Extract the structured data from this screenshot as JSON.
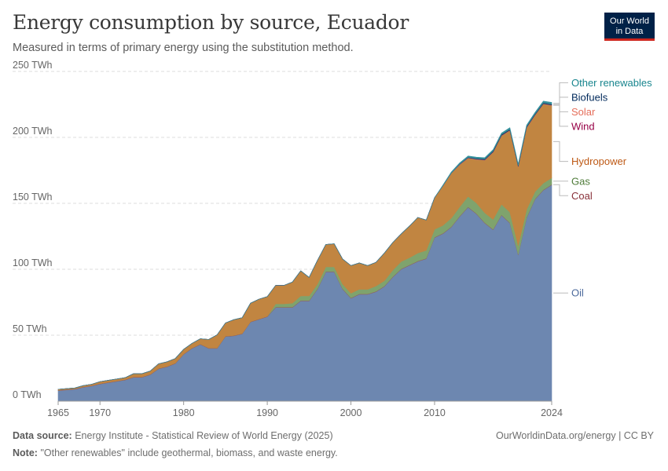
{
  "header": {
    "title": "Energy consumption by source, Ecuador",
    "subtitle": "Measured in terms of primary energy using the substitution method.",
    "logo_line1": "Our World",
    "logo_line2": "in Data"
  },
  "footer": {
    "source_label": "Data source:",
    "source_text": "Energy Institute - Statistical Review of World Energy (2025)",
    "credit": "OurWorldinData.org/energy | CC BY",
    "note_label": "Note:",
    "note_text": "\"Other renewables\" include geothermal, biomass, and waste energy."
  },
  "chart_data": {
    "type": "area",
    "stacked": true,
    "title": "Energy consumption by source, Ecuador",
    "ylim": [
      0,
      250
    ],
    "xlim": [
      1965,
      2024
    ],
    "y_ticks": [
      0,
      50,
      100,
      150,
      200,
      250
    ],
    "y_tick_labels": [
      "0 TWh",
      "50 TWh",
      "100 TWh",
      "150 TWh",
      "200 TWh",
      "250 TWh"
    ],
    "x_ticks": [
      1965,
      1970,
      1980,
      1990,
      2000,
      2010,
      2024
    ],
    "x_tick_labels": [
      "1965",
      "1970",
      "1980",
      "1990",
      "2000",
      "2010",
      "2024"
    ],
    "grid": true,
    "x": [
      1965,
      1966,
      1967,
      1968,
      1969,
      1970,
      1971,
      1972,
      1973,
      1974,
      1975,
      1976,
      1977,
      1978,
      1979,
      1980,
      1981,
      1982,
      1983,
      1984,
      1985,
      1986,
      1987,
      1988,
      1989,
      1990,
      1991,
      1992,
      1993,
      1994,
      1995,
      1996,
      1997,
      1998,
      1999,
      2000,
      2001,
      2002,
      2003,
      2004,
      2005,
      2006,
      2007,
      2008,
      2009,
      2010,
      2011,
      2012,
      2013,
      2014,
      2015,
      2016,
      2017,
      2018,
      2019,
      2020,
      2021,
      2022,
      2023,
      2024
    ],
    "series": [
      {
        "name": "Oil",
        "color": "#6d87b0",
        "label_color": "#4c6a9c",
        "values": [
          8,
          8.5,
          9,
          10.5,
          11.5,
          13,
          14,
          15,
          16,
          18,
          18,
          20,
          24.5,
          26,
          28.5,
          35.5,
          40,
          43,
          40,
          40,
          49,
          49.5,
          51,
          60,
          62,
          64,
          71,
          71,
          71,
          76,
          76,
          85,
          98,
          98,
          85,
          78,
          81,
          81,
          83,
          87,
          94,
          100,
          103,
          106,
          108,
          124,
          127,
          132,
          140,
          147,
          142,
          135,
          130,
          141,
          135,
          111,
          139,
          153,
          160,
          164
        ]
      },
      {
        "name": "Coal",
        "color": "#9a5150",
        "label_color": "#883039",
        "values": [
          0.3,
          0.3,
          0.3,
          0.3,
          0.3,
          0.3,
          0.3,
          0.3,
          0.3,
          0.3,
          0.3,
          0.3,
          0.3,
          0.3,
          0.3,
          0.3,
          0.3,
          0.3,
          0.3,
          0.3,
          0.3,
          0.3,
          0.3,
          0.3,
          0.3,
          0.3,
          0.3,
          0.3,
          0.3,
          0.3,
          0.3,
          0.3,
          0.3,
          0.3,
          0.3,
          0.3,
          0.3,
          0.3,
          0.3,
          0.3,
          0.3,
          0.3,
          0.3,
          0.3,
          0.3,
          0.3,
          0.3,
          0.3,
          0.3,
          0.3,
          0.3,
          0.3,
          0.3,
          0.3,
          0.3,
          0.3,
          0.3,
          0.3,
          0.3,
          0.3
        ]
      },
      {
        "name": "Gas",
        "color": "#7fa36d",
        "label_color": "#4f7c3a",
        "values": [
          0,
          0,
          0,
          0,
          0,
          0,
          0,
          0,
          0,
          0,
          0,
          0,
          0,
          0,
          0,
          0,
          0,
          0,
          0,
          0,
          0,
          0,
          0,
          0,
          0,
          0,
          2.5,
          2.5,
          3,
          3.5,
          3.5,
          3.5,
          3.5,
          3.5,
          3.5,
          3.5,
          3.5,
          3.5,
          4,
          4,
          5,
          5.5,
          5.5,
          6,
          6,
          6,
          6,
          6.5,
          7,
          8,
          8,
          7.5,
          7.5,
          8,
          8,
          6.5,
          6,
          5.5,
          5,
          5
        ]
      },
      {
        "name": "Hydropower",
        "color": "#c18541",
        "label_color": "#be5915",
        "values": [
          0.7,
          0.7,
          0.7,
          1,
          1,
          1.5,
          1.5,
          1.5,
          1.5,
          2.5,
          2.5,
          2.5,
          3.5,
          3.5,
          3.5,
          3.5,
          3.5,
          4,
          6.5,
          10,
          10,
          12,
          12,
          14,
          15,
          15,
          14,
          14,
          16,
          19,
          14,
          18,
          17,
          17.5,
          19,
          21,
          20,
          18,
          18,
          21,
          21,
          21,
          24,
          27,
          23,
          24,
          30,
          34,
          32,
          29,
          33,
          40,
          51,
          52,
          62,
          60,
          62,
          58,
          60,
          55
        ]
      },
      {
        "name": "Wind",
        "color": "#a2559c",
        "label_color": "#970046",
        "values": [
          0,
          0,
          0,
          0,
          0,
          0,
          0,
          0,
          0,
          0,
          0,
          0,
          0,
          0,
          0,
          0,
          0,
          0,
          0,
          0,
          0,
          0,
          0,
          0,
          0,
          0,
          0,
          0,
          0,
          0,
          0,
          0,
          0,
          0,
          0,
          0,
          0,
          0,
          0,
          0,
          0,
          0,
          0,
          0,
          0,
          0,
          0.1,
          0.2,
          0.2,
          0.2,
          0.2,
          0.2,
          0.2,
          0.2,
          0.2,
          0.2,
          0.2,
          0.2,
          0.2,
          0.2
        ]
      },
      {
        "name": "Solar",
        "color": "#d0607f",
        "label_color": "#e56e5a",
        "values": [
          0,
          0,
          0,
          0,
          0,
          0,
          0,
          0,
          0,
          0,
          0,
          0,
          0,
          0,
          0,
          0,
          0,
          0,
          0,
          0,
          0,
          0,
          0,
          0,
          0,
          0,
          0,
          0,
          0,
          0,
          0,
          0,
          0,
          0,
          0,
          0,
          0,
          0,
          0,
          0,
          0,
          0,
          0,
          0,
          0,
          0,
          0,
          0,
          0.1,
          0.1,
          0.1,
          0.1,
          0.1,
          0.1,
          0.1,
          0.1,
          0.1,
          0.1,
          0.1,
          0.1
        ]
      },
      {
        "name": "Biofuels",
        "color": "#1c3556",
        "label_color": "#00295b",
        "values": [
          0,
          0,
          0,
          0,
          0,
          0,
          0,
          0,
          0,
          0,
          0,
          0,
          0,
          0,
          0,
          0,
          0,
          0,
          0,
          0,
          0,
          0,
          0,
          0,
          0,
          0,
          0,
          0,
          0,
          0,
          0,
          0,
          0,
          0,
          0,
          0,
          0,
          0,
          0,
          0,
          0,
          0,
          0,
          0,
          0,
          0,
          0,
          0,
          0.2,
          0.3,
          0.4,
          0.5,
          0.6,
          0.6,
          0.6,
          0.6,
          0.6,
          0.6,
          0.6,
          0.6
        ]
      },
      {
        "name": "Other renewables",
        "color": "#35909c",
        "label_color": "#18858e",
        "values": [
          0,
          0,
          0,
          0,
          0,
          0,
          0,
          0,
          0,
          0,
          0,
          0,
          0,
          0,
          0,
          0,
          0,
          0,
          0,
          0,
          0,
          0,
          0,
          0,
          0,
          0,
          0,
          0,
          0,
          0,
          0,
          0,
          0,
          0,
          0,
          0,
          0,
          0,
          0,
          0,
          0,
          0,
          0,
          0,
          0,
          0,
          0.5,
          0.8,
          0.9,
          1,
          1,
          1,
          1,
          1.1,
          1.2,
          1.1,
          1.1,
          1.2,
          1.3,
          1.3
        ]
      }
    ]
  }
}
